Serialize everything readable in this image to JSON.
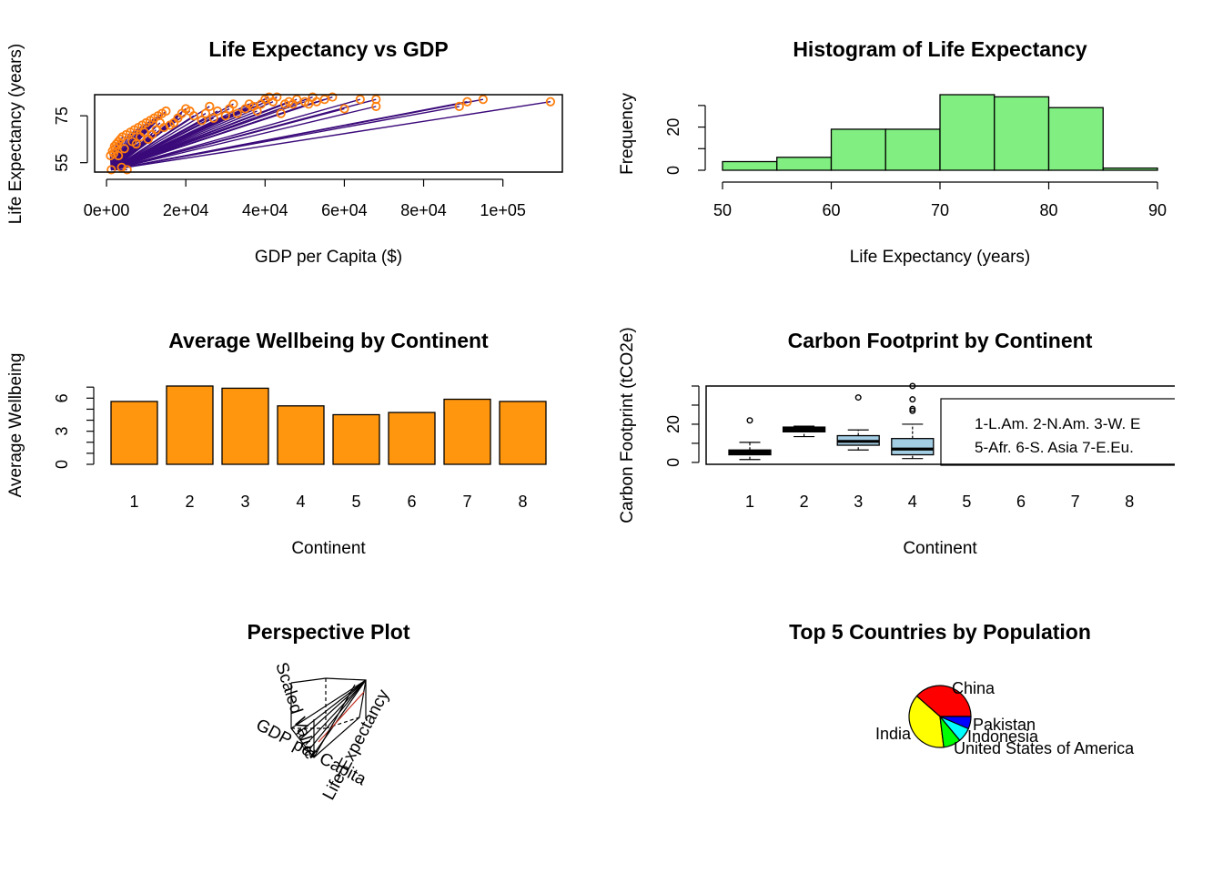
{
  "colors": {
    "scatter_line": "#3b0a7a",
    "scatter_point": "#ff7f0e",
    "hist_fill": "#80ee80",
    "bar_fill": "#ff960e",
    "box_fill": "#a3cde3",
    "pie": [
      "#ff0000",
      "#ffff00",
      "#00ff00",
      "#00ffff",
      "#0000ff"
    ]
  },
  "chart_data": [
    {
      "type": "scatter",
      "title": "Life Expectancy vs GDP",
      "xlabel": "GDP per Capita ($)",
      "ylabel": "Life Expectancy (years)",
      "xlim": [
        -3000,
        115000
      ],
      "ylim": [
        51,
        84
      ],
      "x_ticks": [
        0,
        20000,
        40000,
        60000,
        80000,
        100000
      ],
      "x_tick_labels": [
        "0e+00",
        "2e+04",
        "4e+04",
        "6e+04",
        "8e+04",
        "1e+05"
      ],
      "y_ticks": [
        55,
        75
      ],
      "y_tick_labels": [
        "55",
        "75"
      ],
      "lines_from_point": [
        1200,
        52
      ],
      "points": [
        [
          1200,
          52
        ],
        [
          3800,
          53
        ],
        [
          5200,
          52
        ],
        [
          1000,
          58
        ],
        [
          1500,
          60
        ],
        [
          2000,
          62
        ],
        [
          2500,
          63
        ],
        [
          3000,
          64
        ],
        [
          3500,
          65
        ],
        [
          4000,
          66
        ],
        [
          1800,
          59
        ],
        [
          2200,
          61
        ],
        [
          5000,
          67
        ],
        [
          6000,
          68
        ],
        [
          7000,
          69
        ],
        [
          8000,
          70
        ],
        [
          9000,
          71
        ],
        [
          10000,
          72
        ],
        [
          11000,
          73
        ],
        [
          12000,
          74
        ],
        [
          13000,
          75
        ],
        [
          14000,
          76
        ],
        [
          15000,
          77
        ],
        [
          6500,
          64
        ],
        [
          8500,
          66
        ],
        [
          9500,
          68
        ],
        [
          12500,
          69
        ],
        [
          14500,
          70
        ],
        [
          17000,
          72
        ],
        [
          18000,
          74
        ],
        [
          19000,
          76
        ],
        [
          20000,
          78
        ],
        [
          21000,
          77
        ],
        [
          22000,
          75
        ],
        [
          24000,
          73
        ],
        [
          25000,
          76
        ],
        [
          26000,
          79
        ],
        [
          27000,
          74
        ],
        [
          28000,
          77
        ],
        [
          30000,
          75
        ],
        [
          31000,
          78
        ],
        [
          32000,
          80
        ],
        [
          33000,
          76
        ],
        [
          35000,
          78
        ],
        [
          36000,
          80
        ],
        [
          37000,
          79
        ],
        [
          38000,
          77
        ],
        [
          39000,
          80
        ],
        [
          40000,
          82
        ],
        [
          41000,
          83
        ],
        [
          42000,
          81
        ],
        [
          43000,
          83
        ],
        [
          44000,
          76
        ],
        [
          45000,
          80
        ],
        [
          46000,
          81
        ],
        [
          47000,
          80
        ],
        [
          48000,
          82
        ],
        [
          50000,
          81
        ],
        [
          51000,
          80
        ],
        [
          52000,
          83
        ],
        [
          53000,
          81
        ],
        [
          55000,
          82
        ],
        [
          57000,
          83
        ],
        [
          60000,
          78
        ],
        [
          64000,
          82
        ],
        [
          68000,
          79
        ],
        [
          68000,
          82
        ],
        [
          89000,
          79
        ],
        [
          91000,
          81
        ],
        [
          95000,
          82
        ],
        [
          112000,
          81
        ],
        [
          3000,
          58
        ],
        [
          4500,
          61
        ],
        [
          7500,
          63
        ],
        [
          10500,
          65
        ],
        [
          11500,
          67
        ],
        [
          16000,
          71
        ],
        [
          13500,
          72
        ]
      ]
    },
    {
      "type": "bar",
      "subtype": "histogram",
      "title": "Histogram of Life Expectancy",
      "xlabel": "Life Expectancy (years)",
      "ylabel": "Frequency",
      "bin_edges": [
        50,
        55,
        60,
        65,
        70,
        75,
        80,
        85,
        90
      ],
      "values": [
        4,
        6,
        19,
        19,
        35,
        34,
        29,
        1
      ],
      "xlim": [
        50,
        90
      ],
      "ylim": [
        0,
        35
      ],
      "x_ticks": [
        50,
        60,
        70,
        80,
        90
      ],
      "y_ticks": [
        0,
        10,
        20,
        30
      ],
      "y_tick_labels": [
        "0",
        "",
        "20",
        ""
      ]
    },
    {
      "type": "bar",
      "title": "Average Wellbeing by Continent",
      "xlabel": "Continent",
      "ylabel": "Average Wellbeing",
      "categories": [
        "1",
        "2",
        "3",
        "4",
        "5",
        "6",
        "7",
        "8"
      ],
      "values": [
        5.7,
        7.1,
        6.9,
        5.3,
        4.5,
        4.7,
        5.9,
        5.7
      ],
      "ylim": [
        0,
        7.1
      ],
      "y_ticks": [
        0,
        1,
        2,
        3,
        4,
        5,
        6,
        7
      ],
      "y_tick_labels": [
        "0",
        "",
        "",
        "3",
        "",
        "",
        "6",
        ""
      ]
    },
    {
      "type": "box",
      "title": "Carbon Footprint by Continent",
      "xlabel": "Continent",
      "ylabel": "Carbon Footprint (tCO2e)",
      "categories": [
        "1",
        "2",
        "3",
        "4",
        "5",
        "6",
        "7",
        "8"
      ],
      "ylim": [
        -1,
        40
      ],
      "y_ticks": [
        0,
        10,
        20,
        30,
        40
      ],
      "y_tick_labels": [
        "0",
        "",
        "20",
        "",
        ""
      ],
      "boxes": [
        {
          "category": "1",
          "min": 1.5,
          "q1": 4,
          "median": 5,
          "q3": 6.5,
          "max": 10.5,
          "outliers": [
            22
          ],
          "fill": "#000000"
        },
        {
          "category": "2",
          "min": 13.5,
          "q1": 16,
          "median": 17,
          "q3": 18.5,
          "max": 19,
          "outliers": [],
          "fill": "#000000"
        },
        {
          "category": "3",
          "min": 6.5,
          "q1": 9,
          "median": 11,
          "q3": 14,
          "max": 17,
          "outliers": [
            34
          ],
          "fill": "#a3cde3"
        },
        {
          "category": "4",
          "min": 2,
          "q1": 4,
          "median": 7,
          "q3": 12.5,
          "max": 20,
          "outliers": [
            27,
            28,
            33,
            40
          ],
          "fill": "#a3cde3"
        }
      ],
      "legend_lines": [
        "1-L.Am. 2-N.Am. 3-W. E",
        "5-Afr. 6-S. Asia 7-E.Eu."
      ],
      "legend_position": "right"
    },
    {
      "type": "other",
      "subtype": "perspective",
      "title": "Perspective Plot",
      "axis_labels": [
        "Scaled Value",
        "GDP per Capita",
        "Life Expectancy"
      ]
    },
    {
      "type": "pie",
      "title": "Top 5 Countries by Population",
      "labels": [
        "China",
        "India",
        "United States of America",
        "Indonesia",
        "Pakistan"
      ],
      "values": [
        1412,
        1408,
        333,
        276,
        236
      ]
    }
  ]
}
